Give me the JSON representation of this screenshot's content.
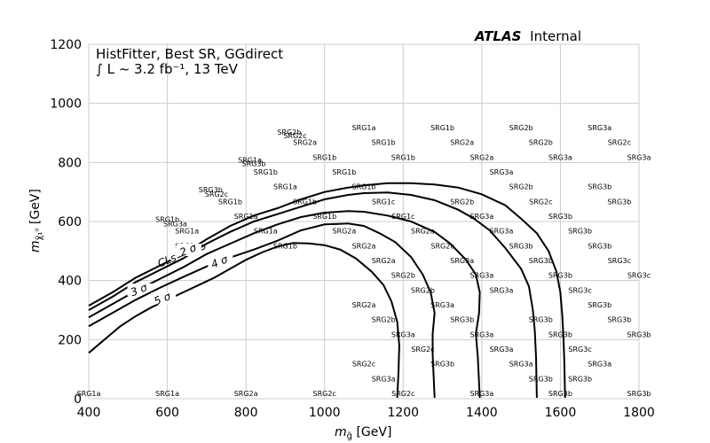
{
  "chart_data": {
    "type": "contour",
    "header": {
      "brand": "ATLAS",
      "status": "Internal"
    },
    "annotation": {
      "line1": "HistFitter, Best SR, GGdirect",
      "line2": "∫ L ~ 3.2 fb⁻¹, 13 TeV"
    },
    "xlabel": {
      "main": "m",
      "sub": "g̃",
      "unit": " [GeV]"
    },
    "ylabel": {
      "main": "m",
      "sub": "χ̃₁⁰",
      "unit": " [GeV]"
    },
    "xlim": [
      400,
      1800
    ],
    "ylim": [
      0,
      1200
    ],
    "x_ticks": [
      400,
      600,
      800,
      1000,
      1200,
      1400,
      1600,
      1800
    ],
    "y_ticks": [
      0,
      200,
      400,
      600,
      800,
      1000,
      1200
    ],
    "grid": true,
    "contours": [
      {
        "label": "CLs=0.05",
        "label_pos": [
          640,
          480
        ],
        "points": [
          [
            400,
            315
          ],
          [
            460,
            360
          ],
          [
            520,
            410
          ],
          [
            580,
            450
          ],
          [
            640,
            490
          ],
          [
            700,
            540
          ],
          [
            760,
            585
          ],
          [
            820,
            620
          ],
          [
            880,
            645
          ],
          [
            940,
            675
          ],
          [
            1000,
            700
          ],
          [
            1060,
            715
          ],
          [
            1100,
            722
          ],
          [
            1160,
            730
          ],
          [
            1220,
            730
          ],
          [
            1280,
            725
          ],
          [
            1340,
            715
          ],
          [
            1400,
            692
          ],
          [
            1460,
            655
          ],
          [
            1500,
            610
          ],
          [
            1540,
            560
          ],
          [
            1570,
            500
          ],
          [
            1590,
            430
          ],
          [
            1600,
            360
          ],
          [
            1605,
            280
          ],
          [
            1608,
            200
          ],
          [
            1610,
            120
          ],
          [
            1612,
            3
          ]
        ]
      },
      {
        "label": "2 σ",
        "label_pos": [
          655,
          495
        ],
        "points": [
          [
            400,
            300
          ],
          [
            460,
            345
          ],
          [
            520,
            395
          ],
          [
            580,
            435
          ],
          [
            640,
            475
          ],
          [
            700,
            525
          ],
          [
            760,
            565
          ],
          [
            820,
            600
          ],
          [
            880,
            625
          ],
          [
            940,
            650
          ],
          [
            1000,
            675
          ],
          [
            1060,
            690
          ],
          [
            1100,
            696
          ],
          [
            1160,
            698
          ],
          [
            1220,
            690
          ],
          [
            1280,
            672
          ],
          [
            1340,
            640
          ],
          [
            1380,
            610
          ],
          [
            1420,
            570
          ],
          [
            1460,
            510
          ],
          [
            1500,
            440
          ],
          [
            1520,
            380
          ],
          [
            1530,
            300
          ],
          [
            1535,
            230
          ],
          [
            1538,
            140
          ],
          [
            1540,
            3
          ]
        ]
      },
      {
        "label": "3 σ",
        "label_pos": [
          530,
          360
        ],
        "points": [
          [
            400,
            275
          ],
          [
            460,
            320
          ],
          [
            520,
            365
          ],
          [
            580,
            405
          ],
          [
            640,
            445
          ],
          [
            700,
            490
          ],
          [
            760,
            525
          ],
          [
            820,
            560
          ],
          [
            880,
            590
          ],
          [
            940,
            615
          ],
          [
            1000,
            630
          ],
          [
            1060,
            635
          ],
          [
            1100,
            633
          ],
          [
            1160,
            620
          ],
          [
            1220,
            600
          ],
          [
            1280,
            565
          ],
          [
            1320,
            525
          ],
          [
            1360,
            470
          ],
          [
            1385,
            420
          ],
          [
            1395,
            360
          ],
          [
            1393,
            290
          ],
          [
            1385,
            220
          ],
          [
            1390,
            140
          ],
          [
            1395,
            3
          ]
        ]
      },
      {
        "label": "4 σ",
        "label_pos": [
          735,
          455
        ],
        "points": [
          [
            400,
            245
          ],
          [
            460,
            290
          ],
          [
            520,
            335
          ],
          [
            580,
            375
          ],
          [
            640,
            412
          ],
          [
            700,
            448
          ],
          [
            760,
            478
          ],
          [
            820,
            505
          ],
          [
            880,
            535
          ],
          [
            940,
            570
          ],
          [
            1000,
            590
          ],
          [
            1060,
            593
          ],
          [
            1100,
            585
          ],
          [
            1140,
            560
          ],
          [
            1180,
            530
          ],
          [
            1220,
            480
          ],
          [
            1250,
            420
          ],
          [
            1270,
            360
          ],
          [
            1280,
            290
          ],
          [
            1275,
            220
          ],
          [
            1275,
            150
          ],
          [
            1280,
            3
          ]
        ]
      },
      {
        "label": "5 σ",
        "label_pos": [
          590,
          330
        ],
        "points": [
          [
            400,
            155
          ],
          [
            440,
            200
          ],
          [
            480,
            245
          ],
          [
            520,
            280
          ],
          [
            560,
            310
          ],
          [
            600,
            335
          ],
          [
            640,
            360
          ],
          [
            680,
            385
          ],
          [
            720,
            410
          ],
          [
            760,
            440
          ],
          [
            800,
            470
          ],
          [
            840,
            495
          ],
          [
            880,
            515
          ],
          [
            920,
            527
          ],
          [
            960,
            526
          ],
          [
            1000,
            520
          ],
          [
            1040,
            505
          ],
          [
            1080,
            475
          ],
          [
            1120,
            430
          ],
          [
            1150,
            385
          ],
          [
            1170,
            330
          ],
          [
            1185,
            260
          ],
          [
            1190,
            180
          ],
          [
            1188,
            90
          ],
          [
            1185,
            3
          ]
        ]
      }
    ],
    "sr_labels": [
      {
        "text": "SRG1a",
        "x": 400,
        "y": 0
      },
      {
        "text": "SRG1a",
        "x": 600,
        "y": 0
      },
      {
        "text": "SRG2a",
        "x": 800,
        "y": 0
      },
      {
        "text": "SRG2c",
        "x": 1000,
        "y": 0
      },
      {
        "text": "SRG2c",
        "x": 1200,
        "y": 0
      },
      {
        "text": "SRG3a",
        "x": 1400,
        "y": 0
      },
      {
        "text": "SRG3b",
        "x": 1600,
        "y": 0
      },
      {
        "text": "SRG3b",
        "x": 1800,
        "y": 0
      },
      {
        "text": "SRG3a",
        "x": 1150,
        "y": 50
      },
      {
        "text": "SRG3b",
        "x": 1650,
        "y": 50
      },
      {
        "text": "SRG3b",
        "x": 1550,
        "y": 50
      },
      {
        "text": "SRG2c",
        "x": 1100,
        "y": 100
      },
      {
        "text": "SRG3b",
        "x": 1300,
        "y": 100
      },
      {
        "text": "SRG3a",
        "x": 1500,
        "y": 100
      },
      {
        "text": "SRG3a",
        "x": 1700,
        "y": 100
      },
      {
        "text": "SRG2c",
        "x": 1250,
        "y": 150
      },
      {
        "text": "SRG3a",
        "x": 1450,
        "y": 150
      },
      {
        "text": "SRG3c",
        "x": 1650,
        "y": 150
      },
      {
        "text": "SRG3a",
        "x": 1200,
        "y": 200
      },
      {
        "text": "SRG3a",
        "x": 1400,
        "y": 200
      },
      {
        "text": "SRG3b",
        "x": 1600,
        "y": 200
      },
      {
        "text": "SRG3b",
        "x": 1800,
        "y": 200
      },
      {
        "text": "SRG2b",
        "x": 1150,
        "y": 250
      },
      {
        "text": "SRG3b",
        "x": 1350,
        "y": 250
      },
      {
        "text": "SRG3b",
        "x": 1550,
        "y": 250
      },
      {
        "text": "SRG3b",
        "x": 1750,
        "y": 250
      },
      {
        "text": "SRG2a",
        "x": 1100,
        "y": 300
      },
      {
        "text": "SRG3a",
        "x": 1300,
        "y": 300
      },
      {
        "text": "SRG3b",
        "x": 1700,
        "y": 300
      },
      {
        "text": "SRG2b",
        "x": 1250,
        "y": 350
      },
      {
        "text": "SRG3a",
        "x": 1450,
        "y": 350
      },
      {
        "text": "SRG3c",
        "x": 1650,
        "y": 350
      },
      {
        "text": "SRG2b",
        "x": 1200,
        "y": 400
      },
      {
        "text": "SRG3a",
        "x": 1400,
        "y": 400
      },
      {
        "text": "SRG3b",
        "x": 1600,
        "y": 400
      },
      {
        "text": "SRG3c",
        "x": 1800,
        "y": 400
      },
      {
        "text": "SRG2a",
        "x": 1150,
        "y": 450
      },
      {
        "text": "SRG3a",
        "x": 1350,
        "y": 450
      },
      {
        "text": "SRG3b",
        "x": 1550,
        "y": 450
      },
      {
        "text": "SRG3c",
        "x": 1750,
        "y": 450
      },
      {
        "text": "SRG1b",
        "x": 900,
        "y": 500
      },
      {
        "text": "SRG2a",
        "x": 1100,
        "y": 500
      },
      {
        "text": "SRG2c",
        "x": 1300,
        "y": 500
      },
      {
        "text": "SRG3b",
        "x": 1500,
        "y": 500
      },
      {
        "text": "SRG3b",
        "x": 1700,
        "y": 500
      },
      {
        "text": "SRG1a",
        "x": 650,
        "y": 500
      },
      {
        "text": "SRG1a",
        "x": 850,
        "y": 550
      },
      {
        "text": "SRG2a",
        "x": 1050,
        "y": 550
      },
      {
        "text": "SRG2a",
        "x": 1250,
        "y": 550
      },
      {
        "text": "SRG3a",
        "x": 1450,
        "y": 550
      },
      {
        "text": "SRG3b",
        "x": 1650,
        "y": 550
      },
      {
        "text": "SRG1b",
        "x": 600,
        "y": 590
      },
      {
        "text": "SRG3a",
        "x": 620,
        "y": 575
      },
      {
        "text": "SRG1a",
        "x": 650,
        "y": 550
      },
      {
        "text": "SRG1a",
        "x": 800,
        "y": 600
      },
      {
        "text": "SRG1b",
        "x": 1000,
        "y": 600
      },
      {
        "text": "SRG1c",
        "x": 1200,
        "y": 600
      },
      {
        "text": "SRG3a",
        "x": 1400,
        "y": 600
      },
      {
        "text": "SRG3b",
        "x": 1600,
        "y": 600
      },
      {
        "text": "SRG1b",
        "x": 760,
        "y": 650
      },
      {
        "text": "SRG1b",
        "x": 950,
        "y": 650
      },
      {
        "text": "SRG1c",
        "x": 1150,
        "y": 650
      },
      {
        "text": "SRG2b",
        "x": 1350,
        "y": 650
      },
      {
        "text": "SRG2c",
        "x": 1550,
        "y": 650
      },
      {
        "text": "SRG3b",
        "x": 1750,
        "y": 650
      },
      {
        "text": "SRG3b",
        "x": 710,
        "y": 690
      },
      {
        "text": "SRG2c",
        "x": 725,
        "y": 675
      },
      {
        "text": "SRG1a",
        "x": 900,
        "y": 700
      },
      {
        "text": "SRG1b",
        "x": 1100,
        "y": 700
      },
      {
        "text": "SRG2b",
        "x": 1500,
        "y": 700
      },
      {
        "text": "SRG3b",
        "x": 1700,
        "y": 700
      },
      {
        "text": "SRG1a",
        "x": 810,
        "y": 790
      },
      {
        "text": "SRG3b",
        "x": 820,
        "y": 778
      },
      {
        "text": "SRG1b",
        "x": 850,
        "y": 750
      },
      {
        "text": "SRG1b",
        "x": 1050,
        "y": 750
      },
      {
        "text": "SRG3a",
        "x": 1450,
        "y": 750
      },
      {
        "text": "SRG1b",
        "x": 1000,
        "y": 800
      },
      {
        "text": "SRG1b",
        "x": 1200,
        "y": 800
      },
      {
        "text": "SRG2a",
        "x": 1400,
        "y": 800
      },
      {
        "text": "SRG3a",
        "x": 1600,
        "y": 800
      },
      {
        "text": "SRG3a",
        "x": 1800,
        "y": 800
      },
      {
        "text": "SRG2a",
        "x": 950,
        "y": 850
      },
      {
        "text": "SRG1b",
        "x": 1150,
        "y": 850
      },
      {
        "text": "SRG2a",
        "x": 1350,
        "y": 850
      },
      {
        "text": "SRG2b",
        "x": 1550,
        "y": 850
      },
      {
        "text": "SRG2c",
        "x": 1750,
        "y": 850
      },
      {
        "text": "SRG2b",
        "x": 910,
        "y": 885
      },
      {
        "text": "SRG2c",
        "x": 925,
        "y": 873
      },
      {
        "text": "SRG1a",
        "x": 1100,
        "y": 900
      },
      {
        "text": "SRG1b",
        "x": 1300,
        "y": 900
      },
      {
        "text": "SRG2b",
        "x": 1500,
        "y": 900
      },
      {
        "text": "SRG3a",
        "x": 1700,
        "y": 900
      }
    ]
  }
}
